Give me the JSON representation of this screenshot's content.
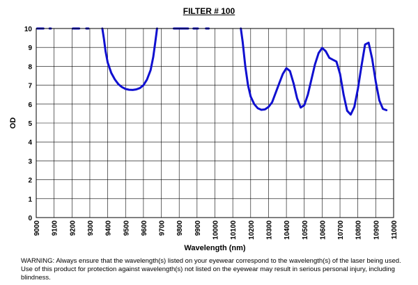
{
  "title": "FILTER # 100",
  "warning": "WARNING: Always ensure that the wavelength(s) listed on your eyewear correspond to the wavelength(s) of the laser being used. Use of this product for protection against wavelength(s) not listed on the eyewear may result in serious personal injury, including blindness.",
  "colors": {
    "line": "#1010d0",
    "grid": "#000000",
    "plot_bg": "#ffffff"
  },
  "chart_data": {
    "type": "line",
    "title": "FILTER # 100",
    "xlabel": "Wavelength (nm)",
    "ylabel": "OD",
    "xlim": [
      9000,
      11000
    ],
    "ylim": [
      0,
      10
    ],
    "xticks": [
      9000,
      9100,
      9200,
      9300,
      9400,
      9500,
      9600,
      9700,
      9800,
      9900,
      10000,
      10100,
      10200,
      10300,
      10400,
      10500,
      10600,
      10700,
      10800,
      10900,
      11000
    ],
    "yticks": [
      0,
      1,
      2,
      3,
      4,
      5,
      6,
      7,
      8,
      9,
      10
    ],
    "grid": true,
    "series": [
      {
        "name": "OD",
        "segments": [
          [
            [
              9005,
              10
            ],
            [
              9040,
              10
            ]
          ],
          [
            [
              9075,
              10
            ],
            [
              9082,
              10
            ]
          ],
          [
            [
              9205,
              10
            ],
            [
              9240,
              10
            ]
          ],
          [
            [
              9280,
              10
            ],
            [
              9292,
              10
            ]
          ],
          [
            [
              9370,
              10
            ],
            [
              9378,
              9.5
            ],
            [
              9388,
              8.8
            ],
            [
              9400,
              8.2
            ],
            [
              9420,
              7.65
            ],
            [
              9440,
              7.3
            ],
            [
              9460,
              7.05
            ],
            [
              9480,
              6.9
            ],
            [
              9500,
              6.8
            ],
            [
              9520,
              6.76
            ],
            [
              9540,
              6.75
            ],
            [
              9560,
              6.78
            ],
            [
              9580,
              6.85
            ],
            [
              9600,
              7.0
            ],
            [
              9620,
              7.3
            ],
            [
              9640,
              7.8
            ],
            [
              9655,
              8.5
            ],
            [
              9665,
              9.2
            ],
            [
              9672,
              9.7
            ],
            [
              9676,
              10
            ]
          ],
          [
            [
              9770,
              10
            ],
            [
              9850,
              10
            ]
          ],
          [
            [
              9880,
              10
            ],
            [
              9905,
              10
            ]
          ],
          [
            [
              9950,
              10
            ],
            [
              9965,
              10
            ]
          ],
          [
            [
              10145,
              10
            ],
            [
              10155,
              9.3
            ],
            [
              10170,
              8.0
            ],
            [
              10185,
              7.0
            ],
            [
              10200,
              6.4
            ],
            [
              10220,
              6.0
            ],
            [
              10240,
              5.78
            ],
            [
              10260,
              5.7
            ],
            [
              10280,
              5.72
            ],
            [
              10300,
              5.85
            ],
            [
              10320,
              6.1
            ],
            [
              10340,
              6.6
            ],
            [
              10360,
              7.1
            ],
            [
              10380,
              7.6
            ],
            [
              10400,
              7.9
            ],
            [
              10420,
              7.75
            ],
            [
              10440,
              7.1
            ],
            [
              10460,
              6.3
            ],
            [
              10480,
              5.82
            ],
            [
              10500,
              5.95
            ],
            [
              10520,
              6.5
            ],
            [
              10540,
              7.3
            ],
            [
              10560,
              8.1
            ],
            [
              10580,
              8.7
            ],
            [
              10600,
              8.97
            ],
            [
              10620,
              8.8
            ],
            [
              10640,
              8.45
            ],
            [
              10660,
              8.35
            ],
            [
              10680,
              8.25
            ],
            [
              10700,
              7.6
            ],
            [
              10720,
              6.5
            ],
            [
              10740,
              5.65
            ],
            [
              10760,
              5.45
            ],
            [
              10780,
              5.85
            ],
            [
              10800,
              6.8
            ],
            [
              10820,
              8.0
            ],
            [
              10840,
              9.15
            ],
            [
              10860,
              9.25
            ],
            [
              10880,
              8.4
            ],
            [
              10900,
              7.2
            ],
            [
              10920,
              6.2
            ],
            [
              10940,
              5.75
            ],
            [
              10960,
              5.68
            ]
          ]
        ]
      }
    ]
  }
}
